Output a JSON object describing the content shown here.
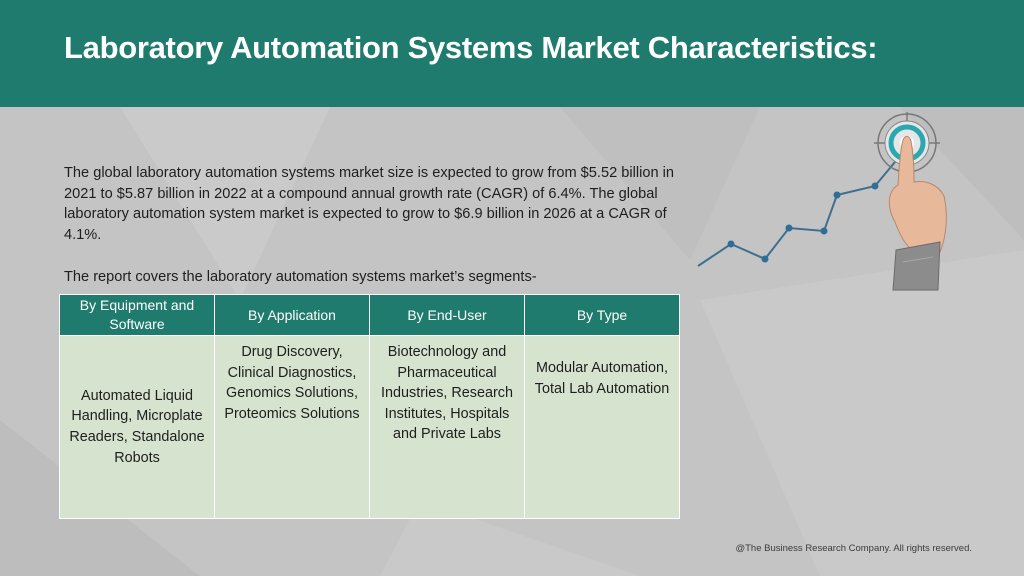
{
  "header": {
    "title": "Laboratory Automation Systems Market Characteristics:"
  },
  "body": {
    "paragraph": "The global laboratory automation systems market size is expected to grow from $5.52 billion in 2021 to $5.87 billion in 2022 at a compound annual growth rate (CAGR) of 6.4%. The global laboratory automation system market is expected to grow to $6.9 billion in 2026 at a CAGR of 4.1%.",
    "intro": "The report covers the laboratory automation systems market’s segments-"
  },
  "table": {
    "headers": [
      "By Equipment and Software",
      "By Application",
      "By End-User",
      "By Type"
    ],
    "cells": [
      "Automated Liquid Handling, Microplate Readers, Standalone Robots",
      "Drug Discovery, Clinical Diagnostics, Genomics Solutions, Proteomics Solutions",
      "Biotechnology and Pharmaceutical Industries, Research Institutes, Hospitals and Private Labs",
      "Modular Automation, Total Lab Automation"
    ]
  },
  "graphic": {
    "icon": "hand-touching-target-growth-chart-icon",
    "line_color": "#3e6f8f",
    "target_color": "#2aa7b0"
  },
  "footer": {
    "copyright": "@The Business Research Company. All rights reserved."
  },
  "colors": {
    "accent": "#1f7b6d",
    "table_cell": "#d6e4cf",
    "background": "#c4c4c4"
  }
}
